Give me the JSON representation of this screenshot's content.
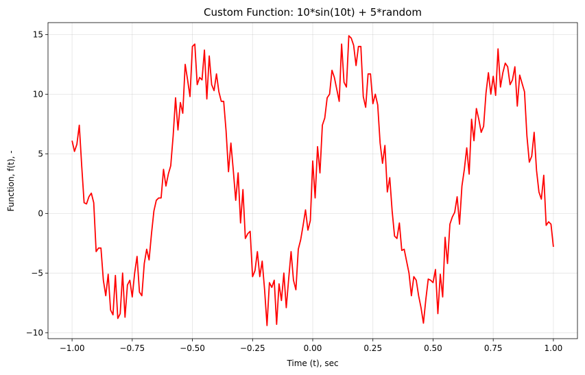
{
  "chart_data": {
    "type": "line",
    "title": "Custom Function: 10*sin(10t) + 5*random",
    "xlabel": "Time (t), sec",
    "ylabel": "Function, f(t), -",
    "xlim": [
      -1.1,
      1.1
    ],
    "ylim": [
      -10.5,
      16.0
    ],
    "xticks": [
      -1.0,
      -0.75,
      -0.5,
      -0.25,
      0.0,
      0.25,
      0.5,
      0.75,
      1.0
    ],
    "xtick_labels": [
      "−1.00",
      "−0.75",
      "−0.50",
      "−0.25",
      "0.00",
      "0.25",
      "0.50",
      "0.75",
      "1.00"
    ],
    "yticks": [
      -10,
      -5,
      0,
      5,
      10,
      15
    ],
    "ytick_labels": [
      "−10",
      "−5",
      "0",
      "5",
      "10",
      "15"
    ],
    "grid": true,
    "series": [
      {
        "color": "#ff0000",
        "x": [
          -1.0,
          -0.99,
          -0.98,
          -0.97,
          -0.96,
          -0.95,
          -0.94,
          -0.93,
          -0.92,
          -0.91,
          -0.9,
          -0.89,
          -0.88,
          -0.87,
          -0.86,
          -0.85,
          -0.84,
          -0.83,
          -0.82,
          -0.81,
          -0.8,
          -0.79,
          -0.78,
          -0.77,
          -0.76,
          -0.75,
          -0.74,
          -0.73,
          -0.72,
          -0.71,
          -0.7,
          -0.69,
          -0.68,
          -0.67,
          -0.66,
          -0.65,
          -0.64,
          -0.63,
          -0.62,
          -0.61,
          -0.6,
          -0.59,
          -0.58,
          -0.57,
          -0.56,
          -0.55,
          -0.54,
          -0.53,
          -0.52,
          -0.51,
          -0.5,
          -0.49,
          -0.48,
          -0.47,
          -0.46,
          -0.45,
          -0.44,
          -0.43,
          -0.42,
          -0.41,
          -0.4,
          -0.39,
          -0.38,
          -0.37,
          -0.36,
          -0.35,
          -0.34,
          -0.33,
          -0.32,
          -0.31,
          -0.3,
          -0.29,
          -0.28,
          -0.27,
          -0.26,
          -0.25,
          -0.24,
          -0.23,
          -0.22,
          -0.21,
          -0.2,
          -0.19,
          -0.18,
          -0.17,
          -0.16,
          -0.15,
          -0.14,
          -0.13,
          -0.12,
          -0.11,
          -0.1,
          -0.09,
          -0.08,
          -0.07,
          -0.06,
          -0.05,
          -0.04,
          -0.03,
          -0.02,
          -0.01,
          0.0,
          0.01,
          0.02,
          0.03,
          0.04,
          0.05,
          0.06,
          0.07,
          0.08,
          0.09,
          0.1,
          0.11,
          0.12,
          0.13,
          0.14,
          0.15,
          0.16,
          0.17,
          0.18,
          0.19,
          0.2,
          0.21,
          0.22,
          0.23,
          0.24,
          0.25,
          0.26,
          0.27,
          0.28,
          0.29,
          0.3,
          0.31,
          0.32,
          0.33,
          0.34,
          0.35,
          0.36,
          0.37,
          0.38,
          0.39,
          0.4,
          0.41,
          0.42,
          0.43,
          0.44,
          0.45,
          0.46,
          0.47,
          0.48,
          0.49,
          0.5,
          0.51,
          0.52,
          0.53,
          0.54,
          0.55,
          0.56,
          0.57,
          0.58,
          0.59,
          0.6,
          0.61,
          0.62,
          0.63,
          0.64,
          0.65,
          0.66,
          0.67,
          0.68,
          0.69,
          0.7,
          0.71,
          0.72,
          0.73,
          0.74,
          0.75,
          0.76,
          0.77,
          0.78,
          0.79,
          0.8,
          0.81,
          0.82,
          0.83,
          0.84,
          0.85,
          0.86,
          0.87,
          0.88,
          0.89,
          0.9,
          0.91,
          0.92,
          0.93,
          0.94,
          0.95,
          0.96,
          0.97,
          0.98,
          0.99,
          1.0
        ],
        "y": [
          6.1,
          5.2,
          5.8,
          7.4,
          4.0,
          0.9,
          0.8,
          1.4,
          1.7,
          0.9,
          -3.2,
          -2.9,
          -2.9,
          -5.6,
          -6.9,
          -5.1,
          -8.1,
          -8.5,
          -5.2,
          -8.8,
          -8.4,
          -5.0,
          -8.7,
          -6.0,
          -5.6,
          -7.0,
          -5.0,
          -3.6,
          -6.6,
          -6.9,
          -4.2,
          -3.0,
          -3.9,
          -1.7,
          0.2,
          1.1,
          1.3,
          1.3,
          3.7,
          2.3,
          3.3,
          4.0,
          6.5,
          9.7,
          7.0,
          9.3,
          8.4,
          12.5,
          11.2,
          9.8,
          14.0,
          14.2,
          10.8,
          11.4,
          11.2,
          13.7,
          9.6,
          13.2,
          10.8,
          10.3,
          11.7,
          10.2,
          9.4,
          9.4,
          6.9,
          3.5,
          5.9,
          3.6,
          1.1,
          3.4,
          -0.8,
          2.0,
          -2.1,
          -1.7,
          -1.5,
          -5.3,
          -4.8,
          -3.2,
          -5.3,
          -4.0,
          -6.4,
          -9.4,
          -5.8,
          -6.2,
          -5.6,
          -9.3,
          -5.9,
          -7.3,
          -5.0,
          -7.9,
          -5.5,
          -3.2,
          -5.6,
          -6.4,
          -3.0,
          -2.2,
          -1.0,
          0.3,
          -1.4,
          -0.6,
          4.4,
          1.3,
          5.6,
          3.4,
          7.4,
          8.0,
          9.7,
          10.0,
          12.0,
          11.4,
          10.4,
          9.4,
          14.2,
          11.0,
          10.6,
          14.9,
          14.7,
          14.1,
          12.4,
          14.0,
          14.0,
          9.8,
          8.9,
          11.7,
          11.7,
          9.2,
          10.0,
          9.1,
          5.9,
          4.2,
          5.7,
          1.8,
          3.0,
          0.2,
          -1.9,
          -2.1,
          -0.8,
          -3.1,
          -3.0,
          -4.0,
          -5.0,
          -6.9,
          -5.3,
          -5.6,
          -6.9,
          -7.9,
          -9.2,
          -7.2,
          -5.5,
          -5.6,
          -5.8,
          -4.7,
          -8.4,
          -5.1,
          -7.0,
          -2.0,
          -4.2,
          -0.9,
          -0.3,
          0.1,
          1.4,
          -0.9,
          2.3,
          3.7,
          5.5,
          3.3,
          7.9,
          6.1,
          8.8,
          7.9,
          6.8,
          7.3,
          10.1,
          11.8,
          10.0,
          11.5,
          9.9,
          13.8,
          10.6,
          11.8,
          12.6,
          12.3,
          10.8,
          11.2,
          12.3,
          9.0,
          11.6,
          10.9,
          10.2,
          6.5,
          4.3,
          4.8,
          6.8,
          3.6,
          1.8,
          1.2,
          3.2,
          -1.0,
          -0.7,
          -0.9,
          -2.8
        ]
      }
    ]
  }
}
